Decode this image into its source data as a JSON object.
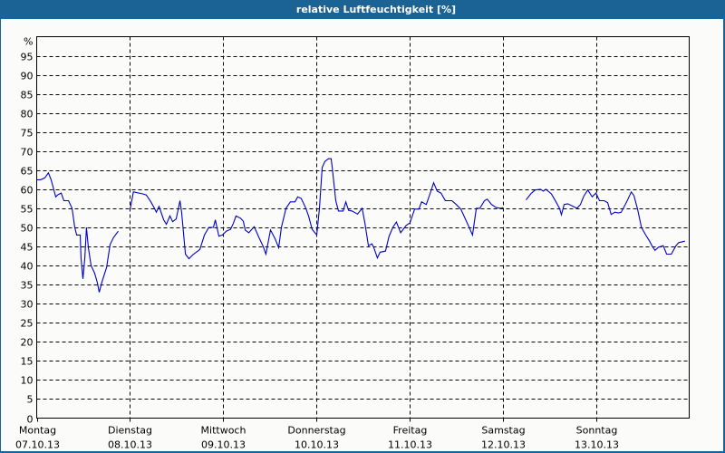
{
  "window": {
    "title": "relative Luftfeuchtigkeit [%]"
  },
  "colors": {
    "titlebar": "#1c6395",
    "background": "#fbfcf9",
    "line": "#0000c8",
    "grid": "#000000"
  },
  "chart_data": {
    "type": "line",
    "title": "relative Luftfeuchtigkeit [%]",
    "xlabel": "",
    "ylabel": "%",
    "ylim": [
      0,
      100
    ],
    "yticks": [
      0,
      5,
      10,
      15,
      20,
      25,
      30,
      35,
      40,
      45,
      50,
      55,
      60,
      65,
      70,
      75,
      80,
      85,
      90,
      95
    ],
    "y_unit_label": "%",
    "grid": true,
    "grid_style": "dashed",
    "x_unit": "hours since Montag 07.10.13 00:00",
    "xlim_hours": [
      0,
      168
    ],
    "x_categories": [
      {
        "day": "Montag",
        "date": "07.10.13",
        "hour": 0
      },
      {
        "day": "Dienstag",
        "date": "08.10.13",
        "hour": 24
      },
      {
        "day": "Mittwoch",
        "date": "09.10.13",
        "hour": 48
      },
      {
        "day": "Donnerstag",
        "date": "10.10.13",
        "hour": 72
      },
      {
        "day": "Freitag",
        "date": "11.10.13",
        "hour": 96
      },
      {
        "day": "Samstag",
        "date": "12.10.13",
        "hour": 120
      },
      {
        "day": "Sonntag",
        "date": "13.10.13",
        "hour": 144
      }
    ],
    "series": [
      {
        "name": "relative Luftfeuchtigkeit",
        "segments": [
          [
            [
              0,
              62.5
            ],
            [
              1.0,
              62.5
            ],
            [
              2.1,
              63.0
            ],
            [
              3.0,
              64.3
            ],
            [
              3.7,
              62.5
            ],
            [
              4.9,
              58.0
            ],
            [
              5.4,
              58.5
            ],
            [
              6.3,
              59.0
            ],
            [
              7.0,
              57.0
            ],
            [
              8.2,
              57.0
            ],
            [
              9.1,
              55.0
            ],
            [
              9.8,
              50.0
            ],
            [
              10.3,
              48.0
            ],
            [
              11.2,
              48.0
            ],
            [
              11.4,
              42.0
            ],
            [
              11.9,
              36.5
            ],
            [
              12.4,
              42.0
            ],
            [
              12.8,
              50.0
            ],
            [
              13.3,
              44.7
            ],
            [
              14.0,
              40.0
            ],
            [
              14.9,
              38.0
            ],
            [
              15.6,
              35.5
            ],
            [
              16.1,
              33.0
            ],
            [
              16.8,
              35.7
            ],
            [
              18.0,
              39.5
            ],
            [
              18.9,
              45.5
            ],
            [
              19.8,
              47.4
            ],
            [
              21.0,
              49.0
            ]
          ],
          [
            [
              24.0,
              54.5
            ],
            [
              24.9,
              59.3
            ],
            [
              27.3,
              58.8
            ],
            [
              28.2,
              58.5
            ],
            [
              29.4,
              56.7
            ],
            [
              30.3,
              55.0
            ],
            [
              30.8,
              54.0
            ],
            [
              31.5,
              55.5
            ],
            [
              32.7,
              52.0
            ],
            [
              33.4,
              50.8
            ],
            [
              34.3,
              53.0
            ],
            [
              35.0,
              51.5
            ],
            [
              35.9,
              52.2
            ],
            [
              36.9,
              57.0
            ],
            [
              37.3,
              54.0
            ],
            [
              38.3,
              43.0
            ],
            [
              39.2,
              41.8
            ],
            [
              40.4,
              43.0
            ],
            [
              42.0,
              44.2
            ],
            [
              43.2,
              48.0
            ],
            [
              44.3,
              50.0
            ],
            [
              45.5,
              50.0
            ],
            [
              46.0,
              52.0
            ],
            [
              46.9,
              47.7
            ],
            [
              47.8,
              48.0
            ],
            [
              48.8,
              49.0
            ],
            [
              49.9,
              49.5
            ],
            [
              50.6,
              51.0
            ],
            [
              51.3,
              53.0
            ],
            [
              52.5,
              52.4
            ],
            [
              53.2,
              51.6
            ],
            [
              53.7,
              49.3
            ],
            [
              54.6,
              48.6
            ],
            [
              56.0,
              50.2
            ],
            [
              57.2,
              47.4
            ],
            [
              58.3,
              45.0
            ],
            [
              59.0,
              43.0
            ],
            [
              60.2,
              49.3
            ],
            [
              61.4,
              47.0
            ],
            [
              62.3,
              44.7
            ],
            [
              63.0,
              50.0
            ],
            [
              64.2,
              55.0
            ],
            [
              65.3,
              56.7
            ],
            [
              66.5,
              56.7
            ],
            [
              67.2,
              58.0
            ],
            [
              68.1,
              57.6
            ],
            [
              69.3,
              55.0
            ],
            [
              70.0,
              53.0
            ],
            [
              70.9,
              49.5
            ],
            [
              72.1,
              48.0
            ],
            [
              72.8,
              55.0
            ],
            [
              73.5,
              65.7
            ],
            [
              74.2,
              67.3
            ],
            [
              75.1,
              68.0
            ],
            [
              75.8,
              68.0
            ],
            [
              76.1,
              65.7
            ],
            [
              77.0,
              57.0
            ],
            [
              77.7,
              54.3
            ],
            [
              78.9,
              54.3
            ],
            [
              79.6,
              56.7
            ],
            [
              80.3,
              54.5
            ],
            [
              81.2,
              54.3
            ],
            [
              82.6,
              53.5
            ],
            [
              83.8,
              55.0
            ],
            [
              84.5,
              51.2
            ],
            [
              85.4,
              45.2
            ],
            [
              86.3,
              45.7
            ],
            [
              86.8,
              44.7
            ],
            [
              87.7,
              42.0
            ],
            [
              88.4,
              43.5
            ],
            [
              89.8,
              43.8
            ],
            [
              90.7,
              47.6
            ],
            [
              91.7,
              50.0
            ],
            [
              92.6,
              51.4
            ],
            [
              93.7,
              48.6
            ],
            [
              95.1,
              50.5
            ],
            [
              96.1,
              51.2
            ],
            [
              97.3,
              54.8
            ],
            [
              98.4,
              54.8
            ],
            [
              99.1,
              56.7
            ],
            [
              100.3,
              56.0
            ],
            [
              101.5,
              59.5
            ],
            [
              102.2,
              61.7
            ],
            [
              103.1,
              59.5
            ],
            [
              104.1,
              59.0
            ],
            [
              105.2,
              57.0
            ],
            [
              106.9,
              57.0
            ],
            [
              108.0,
              56.0
            ],
            [
              109.2,
              54.8
            ],
            [
              110.8,
              51.2
            ],
            [
              112.2,
              48.0
            ],
            [
              113.2,
              55.0
            ],
            [
              114.1,
              55.0
            ],
            [
              115.3,
              57.0
            ],
            [
              116.0,
              57.4
            ],
            [
              117.1,
              56.0
            ],
            [
              118.3,
              55.2
            ],
            [
              119.4,
              55.0
            ],
            [
              120.1,
              55.2
            ]
          ],
          [
            [
              126.0,
              57.2
            ],
            [
              127.2,
              58.8
            ],
            [
              128.3,
              59.8
            ],
            [
              129.7,
              60.0
            ],
            [
              130.4,
              59.5
            ],
            [
              131.1,
              60.0
            ],
            [
              132.5,
              58.8
            ],
            [
              133.7,
              56.7
            ],
            [
              134.6,
              55.0
            ],
            [
              135.1,
              53.3
            ],
            [
              135.8,
              56.0
            ],
            [
              136.7,
              56.2
            ],
            [
              138.1,
              55.5
            ],
            [
              139.1,
              55.0
            ],
            [
              140.0,
              56.0
            ],
            [
              140.9,
              58.3
            ],
            [
              141.9,
              59.8
            ],
            [
              143.0,
              58.0
            ],
            [
              144.0,
              59.0
            ],
            [
              144.9,
              57.0
            ],
            [
              146.1,
              57.0
            ],
            [
              147.0,
              56.5
            ],
            [
              147.9,
              53.4
            ],
            [
              148.9,
              54.0
            ],
            [
              149.8,
              53.8
            ],
            [
              150.5,
              54.0
            ],
            [
              151.9,
              56.7
            ],
            [
              153.1,
              59.3
            ],
            [
              153.8,
              58.3
            ],
            [
              154.7,
              54.8
            ],
            [
              155.7,
              50.0
            ],
            [
              156.8,
              48.0
            ],
            [
              157.8,
              46.4
            ],
            [
              158.5,
              45.0
            ],
            [
              159.2,
              44.0
            ],
            [
              160.1,
              44.8
            ],
            [
              161.3,
              45.2
            ],
            [
              162.2,
              43.0
            ],
            [
              163.4,
              43.0
            ],
            [
              164.6,
              45.2
            ],
            [
              165.3,
              46.0
            ],
            [
              166.9,
              46.4
            ]
          ]
        ]
      }
    ]
  }
}
